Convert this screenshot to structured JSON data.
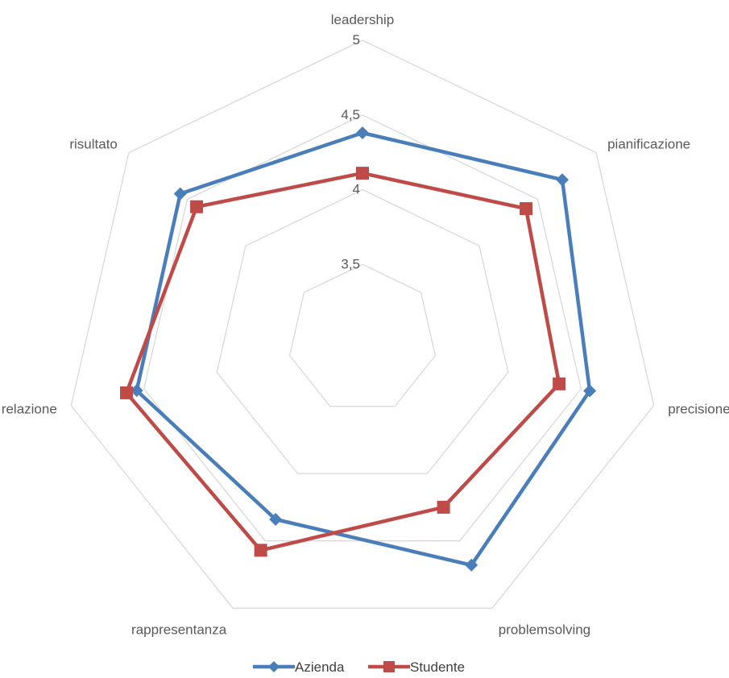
{
  "chart_data": {
    "type": "radar",
    "categories": [
      "leadership",
      "pianificazione",
      "precisione",
      "problemsolving",
      "rappresentanza",
      "relazione",
      "risultato"
    ],
    "r_ticks": [
      "3,5",
      "4",
      "4,5",
      "5"
    ],
    "r_tick_values": [
      3.5,
      4.0,
      4.5,
      5.0
    ],
    "rlim": [
      3.0,
      5.0
    ],
    "series": [
      {
        "name": "Azienda",
        "color": "#4a7ebb",
        "marker": "diamond",
        "values": [
          4.38,
          4.71,
          4.56,
          4.68,
          4.34,
          4.55,
          4.56
        ]
      },
      {
        "name": "Studente",
        "color": "#be4b48",
        "marker": "square",
        "values": [
          4.11,
          4.4,
          4.35,
          4.25,
          4.57,
          4.62,
          4.42
        ]
      }
    ],
    "legend": "bottom",
    "grid": true
  }
}
